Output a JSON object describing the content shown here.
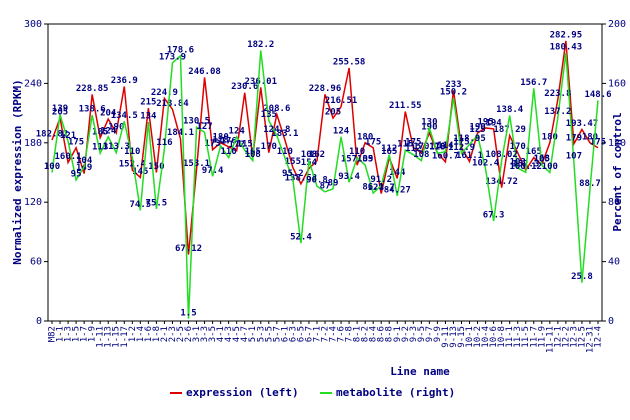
{
  "chart_data": {
    "type": "line",
    "x_label": "Line name",
    "y_label": "Normalized expression (RPKM)",
    "y2_label": "Percent of control",
    "categories": [
      "M82",
      "1-1",
      "1-3",
      "1-5",
      "1-7",
      "1-9",
      "1-11",
      "1-13",
      "1-15",
      "1-17",
      "1-2",
      "1-4",
      "1-6",
      "1-8",
      "2-1",
      "2-3",
      "2-5",
      "2-6",
      "3-1",
      "3-3",
      "3-5",
      "4-1",
      "4-3",
      "4-5",
      "4-7",
      "5-1",
      "5-3",
      "5-5",
      "5-7",
      "6-1",
      "6-3",
      "6-5",
      "6-7",
      "7-1",
      "7-2",
      "7-4",
      "7-6",
      "7-8",
      "8-1",
      "8-2",
      "8-4",
      "8-6",
      "8-8",
      "9-1",
      "9-2",
      "9-3",
      "9-5",
      "9-7",
      "9-9",
      "9-11",
      "9-13",
      "9-15",
      "10-1",
      "10-2",
      "10-4",
      "10-6",
      "10-8",
      "11-1",
      "11-3",
      "11-5",
      "11-7",
      "11-9",
      "11-11",
      "12-1",
      "12-2",
      "12-3",
      "12-5",
      "12-31",
      "12-4"
    ],
    "series": [
      {
        "name": "expression (left)",
        "color": "#dd0000",
        "axis": "y",
        "values": [
          182.82,
          205,
          160.1,
          175,
          149,
          228.85,
          185,
          204,
          190,
          236.9,
          152.4,
          145,
          215,
          150,
          224.9,
          213.84,
          184.1,
          67.12,
          153.1,
          246.08,
          173,
          180,
          176,
          172,
          230.6,
          165,
          236.01,
          170,
          208.6,
          183.1,
          155,
          138.52,
          154,
          162,
          228.96,
          205,
          216.51,
          255.58,
          157.39,
          180,
          175,
          128.7,
          165,
          144,
          211.55,
          175,
          170,
          190,
          170,
          160.7,
          233,
          175,
          161.1,
          190,
          195,
          194,
          134.72,
          187.29,
          170,
          152.3,
          165,
          158,
          180,
          223.8,
          282.95,
          179,
          193.47,
          180,
          175
        ]
      },
      {
        "name": "metabolite (right)",
        "color": "#22dd22",
        "axis": "y2",
        "values": [
          100,
          139,
          121,
          95,
          104,
          138.6,
          113,
          124,
          113.3,
          134.5,
          110,
          74.5,
          134,
          75.5,
          116,
          173.9,
          178.6,
          1.5,
          130.5,
          127,
          97.4,
          118,
          110,
          124,
          115,
          108,
          182.2,
          135,
          124.8,
          110,
          95.2,
          52.4,
          108,
          90.8,
          87,
          89,
          124,
          93.4,
          110,
          105,
          86.1,
          91.2,
          112,
          84.27,
          115,
          112,
          108,
          130,
          113,
          114,
          150.2,
          112.9,
          118.95,
          125,
          102.4,
          67.3,
          108.02,
          138.4,
          103,
          100.12,
          156.7,
          105,
          100,
          137.2,
          180.43,
          107,
          25.8,
          88.7,
          148.6
        ]
      }
    ],
    "ylim": [
      0,
      300
    ],
    "yticks": [
      0,
      60,
      120,
      180,
      240,
      300
    ],
    "y2lim": [
      0,
      200
    ],
    "y2ticks": [
      0,
      40,
      80,
      120,
      160,
      200
    ],
    "legend": "bottom"
  }
}
